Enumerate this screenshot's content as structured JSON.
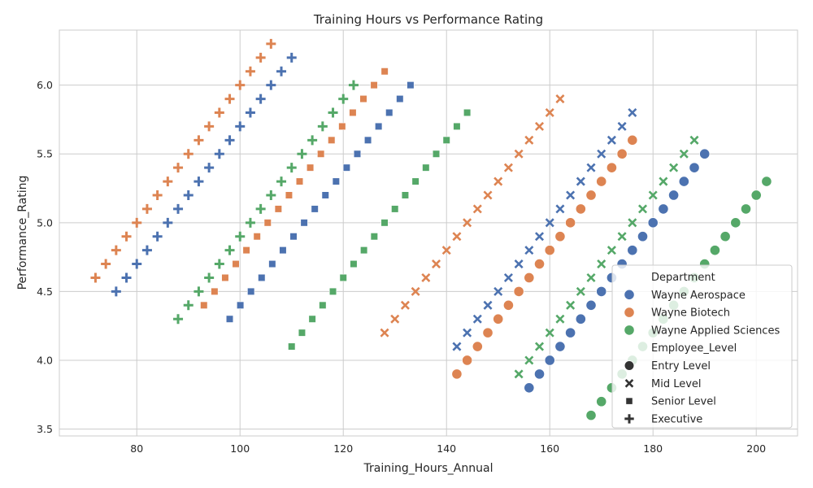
{
  "chart_data": {
    "type": "scatter",
    "title": "Training Hours vs Performance Rating",
    "xlabel": "Training_Hours_Annual",
    "ylabel": "Performance_Rating",
    "xlim": [
      65,
      208
    ],
    "ylim": [
      3.45,
      6.4
    ],
    "xticks": [
      80,
      100,
      120,
      140,
      160,
      180,
      200
    ],
    "yticks": [
      3.5,
      4.0,
      4.5,
      5.0,
      5.5,
      6.0
    ],
    "grid": true,
    "legend_position": "bottom-right",
    "legend": {
      "hue_title": "Department",
      "style_title": "Employee_Level"
    },
    "departments": [
      {
        "name": "Wayne Aerospace",
        "color": "#4c72b0"
      },
      {
        "name": "Wayne Biotech",
        "color": "#dd8452"
      },
      {
        "name": "Wayne Applied Sciences",
        "color": "#55a868"
      }
    ],
    "levels": [
      {
        "name": "Entry Level",
        "marker": "circle"
      },
      {
        "name": "Mid Level",
        "marker": "x"
      },
      {
        "name": "Senior Level",
        "marker": "square"
      },
      {
        "name": "Executive",
        "marker": "plus"
      }
    ],
    "series": [
      {
        "department": "Wayne Aerospace",
        "level": "Entry Level",
        "x_start": 156,
        "y_start": 3.8,
        "x_step": 2,
        "y_step": 0.1,
        "count": 18
      },
      {
        "department": "Wayne Biotech",
        "level": "Entry Level",
        "x_start": 142,
        "y_start": 3.9,
        "x_step": 2,
        "y_step": 0.1,
        "count": 18
      },
      {
        "department": "Wayne Applied Sciences",
        "level": "Entry Level",
        "x_start": 168,
        "y_start": 3.6,
        "x_step": 2,
        "y_step": 0.1,
        "count": 18
      },
      {
        "department": "Wayne Aerospace",
        "level": "Mid Level",
        "x_start": 142,
        "y_start": 4.1,
        "x_step": 2,
        "y_step": 0.1,
        "count": 18
      },
      {
        "department": "Wayne Biotech",
        "level": "Mid Level",
        "x_start": 128,
        "y_start": 4.2,
        "x_step": 2,
        "y_step": 0.1,
        "count": 18
      },
      {
        "department": "Wayne Applied Sciences",
        "level": "Mid Level",
        "x_start": 154,
        "y_start": 3.9,
        "x_step": 2,
        "y_step": 0.1,
        "count": 18
      },
      {
        "department": "Wayne Aerospace",
        "level": "Senior Level",
        "x_start": 98,
        "y_start": 4.3,
        "x_step": 2.06,
        "y_step": 0.1,
        "count": 18
      },
      {
        "department": "Wayne Biotech",
        "level": "Senior Level",
        "x_start": 93,
        "y_start": 4.4,
        "x_step": 2.06,
        "y_step": 0.1,
        "count": 18
      },
      {
        "department": "Wayne Applied Sciences",
        "level": "Senior Level",
        "x_start": 110,
        "y_start": 4.1,
        "x_step": 2,
        "y_step": 0.1,
        "count": 18
      },
      {
        "department": "Wayne Aerospace",
        "level": "Executive",
        "x_start": 76,
        "y_start": 4.5,
        "x_step": 2,
        "y_step": 0.1,
        "count": 18
      },
      {
        "department": "Wayne Biotech",
        "level": "Executive",
        "x_start": 72,
        "y_start": 4.6,
        "x_step": 2,
        "y_step": 0.1,
        "count": 18
      },
      {
        "department": "Wayne Applied Sciences",
        "level": "Executive",
        "x_start": 88,
        "y_start": 4.3,
        "x_step": 2,
        "y_step": 0.1,
        "count": 18
      }
    ]
  }
}
